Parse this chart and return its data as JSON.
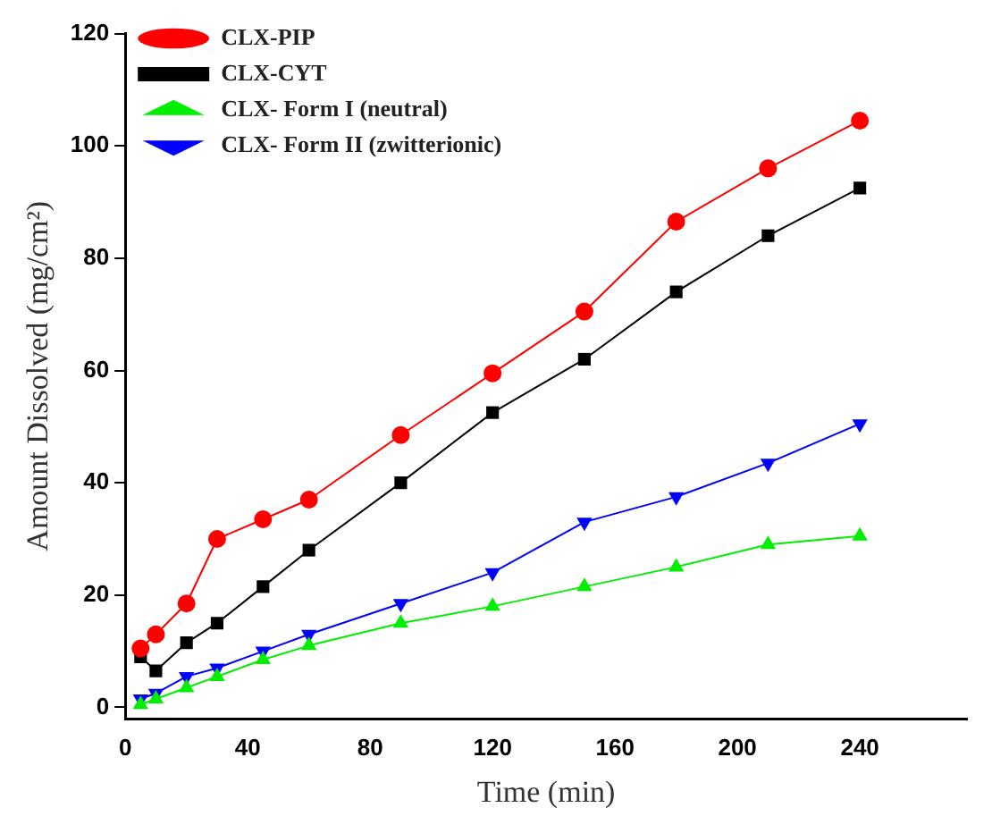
{
  "chart_data": {
    "type": "line",
    "xlabel": "Time (min)",
    "ylabel": "Amount Dissolved (mg/cm²)",
    "x": [
      5,
      10,
      20,
      30,
      45,
      60,
      90,
      120,
      150,
      180,
      210,
      240
    ],
    "xlim": [
      0,
      275
    ],
    "xticks": [
      0,
      40,
      80,
      120,
      160,
      200,
      240
    ],
    "ylim": [
      -2,
      120
    ],
    "yticks": [
      0,
      20,
      40,
      60,
      80,
      100,
      120
    ],
    "grid": false,
    "legend": "top left",
    "line_style": "solid",
    "series": [
      {
        "name": "CLX-PIP",
        "color": "#ff0000",
        "marker": "circle",
        "values": [
          10.5,
          13,
          18.5,
          30,
          33.5,
          37,
          48.5,
          59.5,
          70.5,
          86.5,
          96,
          104.5
        ]
      },
      {
        "name": "CLX-CYT",
        "color": "#000000",
        "marker": "square",
        "values": [
          9,
          6.5,
          11.5,
          15,
          21.5,
          28,
          40,
          52.5,
          62,
          74,
          84,
          92.5
        ]
      },
      {
        "name": "CLX- Form I (neutral)",
        "color": "#00ee00",
        "marker": "triangle",
        "values": [
          0.5,
          1.5,
          3.5,
          5.5,
          8.5,
          11,
          15,
          18,
          21.5,
          25,
          29,
          30.5
        ]
      },
      {
        "name": "CLX- Form II (zwitterionic)",
        "color": "#0000ff",
        "marker": "triangle-down",
        "values": [
          1.5,
          2.5,
          5.5,
          7,
          10,
          13,
          18.5,
          24,
          33,
          37.5,
          43.5,
          50.5
        ]
      }
    ]
  }
}
